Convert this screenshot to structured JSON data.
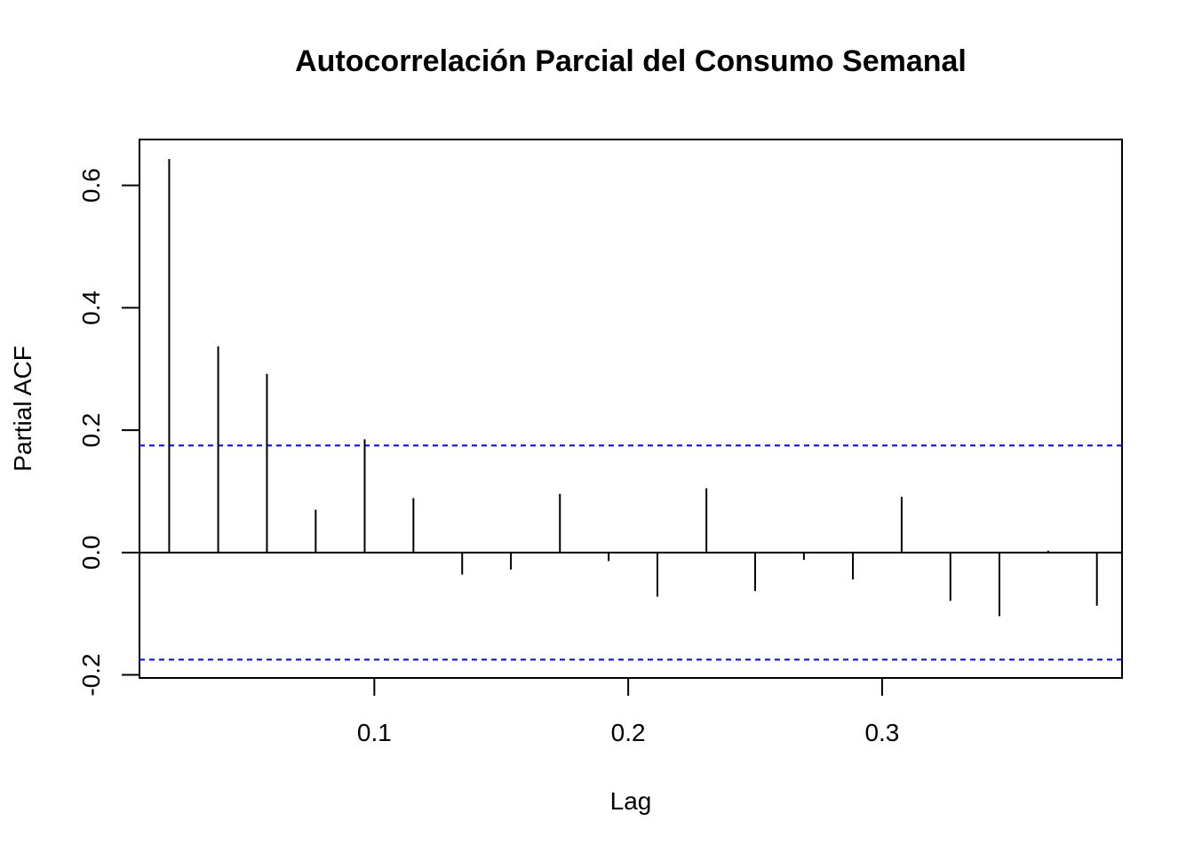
{
  "chart_data": {
    "type": "bar",
    "title": "Autocorrelación Parcial del Consumo Semanal",
    "xlabel": "Lag",
    "ylabel": "Partial ACF",
    "xlim": [
      0.0075,
      0.3945
    ],
    "ylim": [
      -0.205,
      0.675
    ],
    "x_ticks": [
      {
        "value": 0.1,
        "label": "0.1"
      },
      {
        "value": 0.2,
        "label": "0.2"
      },
      {
        "value": 0.3,
        "label": "0.3"
      }
    ],
    "y_ticks": [
      {
        "value": -0.2,
        "label": "-0.2"
      },
      {
        "value": 0.0,
        "label": "0.0"
      },
      {
        "value": 0.2,
        "label": "0.2"
      },
      {
        "value": 0.4,
        "label": "0.4"
      },
      {
        "value": 0.6,
        "label": "0.6"
      }
    ],
    "confidence_limit": 0.175,
    "lags": [
      0.0192,
      0.0385,
      0.0577,
      0.0769,
      0.0962,
      0.1154,
      0.1346,
      0.1538,
      0.1731,
      0.1923,
      0.2115,
      0.2308,
      0.25,
      0.2692,
      0.2885,
      0.3077,
      0.3269,
      0.3462,
      0.3654,
      0.3846
    ],
    "values": [
      0.643,
      0.337,
      0.292,
      0.07,
      0.185,
      0.089,
      -0.036,
      -0.028,
      0.096,
      -0.014,
      -0.072,
      0.105,
      -0.063,
      -0.012,
      -0.044,
      0.091,
      -0.079,
      -0.104,
      0.003,
      -0.087
    ],
    "colors": {
      "bars": "#000000",
      "confidence": "#0000FF",
      "zero_line": "#000000"
    },
    "grid": false
  }
}
